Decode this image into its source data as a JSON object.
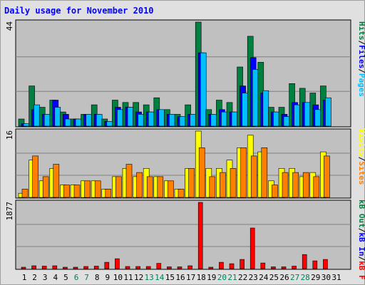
{
  "title": "Daily usage for November 2010",
  "chart_data": [
    {
      "type": "bar",
      "panel": "top",
      "ymax_label": "44",
      "ylim": [
        0,
        44
      ],
      "categories": [
        "1",
        "2",
        "3",
        "4",
        "5",
        "6",
        "7",
        "8",
        "9",
        "10",
        "11",
        "12",
        "13",
        "14",
        "15",
        "16",
        "17",
        "18",
        "19",
        "20",
        "21",
        "22",
        "23",
        "24",
        "25",
        "26",
        "27",
        "28",
        "29",
        "30",
        "31"
      ],
      "series": [
        {
          "name": "Hits",
          "color": "#008040",
          "values": [
            3,
            17,
            8,
            11,
            6,
            3,
            5,
            9,
            3,
            11,
            10,
            10,
            9,
            12,
            7,
            5,
            9,
            44,
            7,
            11,
            10,
            25,
            38,
            27,
            8,
            8,
            18,
            16,
            14,
            17,
            0
          ]
        },
        {
          "name": "Files",
          "color": "#0000ff",
          "values": [
            1,
            7,
            5,
            11,
            5,
            3,
            5,
            5,
            2,
            8,
            8,
            6,
            6,
            7,
            5,
            4,
            5,
            31,
            5,
            7,
            6,
            17,
            29,
            14,
            6,
            5,
            10,
            10,
            9,
            11,
            0
          ]
        },
        {
          "name": "Pages",
          "color": "#00c0ff",
          "values": [
            1,
            9,
            5,
            8,
            3,
            3,
            5,
            5,
            2,
            7,
            8,
            5,
            6,
            7,
            5,
            4,
            5,
            31,
            5,
            6,
            6,
            14,
            24,
            15,
            6,
            4,
            9,
            10,
            7,
            12,
            0
          ]
        }
      ]
    },
    {
      "type": "bar",
      "panel": "middle",
      "ymax_label": "16",
      "ylim": [
        0,
        16
      ],
      "categories": [
        "1",
        "2",
        "3",
        "4",
        "5",
        "6",
        "7",
        "8",
        "9",
        "10",
        "11",
        "12",
        "13",
        "14",
        "15",
        "16",
        "17",
        "18",
        "19",
        "20",
        "21",
        "22",
        "23",
        "24",
        "25",
        "26",
        "27",
        "28",
        "29",
        "30",
        "31"
      ],
      "series": [
        {
          "name": "Visits",
          "color": "#ffff00",
          "values": [
            1,
            9,
            4,
            7,
            3,
            3,
            4,
            4,
            2,
            5,
            7,
            5,
            7,
            5,
            4,
            2,
            7,
            16,
            7,
            7,
            9,
            12,
            15,
            11,
            4,
            7,
            7,
            5,
            6,
            11,
            0
          ]
        },
        {
          "name": "Sites",
          "color": "#ff8000",
          "values": [
            2,
            10,
            5,
            8,
            3,
            3,
            4,
            4,
            2,
            5,
            8,
            6,
            5,
            5,
            4,
            2,
            7,
            12,
            5,
            6,
            7,
            12,
            10,
            12,
            3,
            6,
            6,
            6,
            5,
            10,
            0
          ]
        }
      ]
    },
    {
      "type": "bar",
      "panel": "bottom",
      "ymax_label": "1877",
      "ylim": [
        0,
        1877
      ],
      "categories": [
        "1",
        "2",
        "3",
        "4",
        "5",
        "6",
        "7",
        "8",
        "9",
        "10",
        "11",
        "12",
        "13",
        "14",
        "15",
        "16",
        "17",
        "18",
        "19",
        "20",
        "21",
        "22",
        "23",
        "24",
        "25",
        "26",
        "27",
        "28",
        "29",
        "30",
        "31"
      ],
      "series": [
        {
          "name": "kB F",
          "color": "#ff0000",
          "values": [
            40,
            80,
            70,
            80,
            40,
            40,
            60,
            70,
            180,
            280,
            60,
            60,
            60,
            150,
            50,
            50,
            80,
            1877,
            40,
            180,
            140,
            260,
            1150,
            160,
            50,
            50,
            70,
            400,
            220,
            260,
            0
          ]
        },
        {
          "name": "kB In",
          "color": "#0000ff",
          "values": [
            0,
            0,
            0,
            0,
            0,
            0,
            0,
            0,
            0,
            0,
            0,
            0,
            0,
            0,
            0,
            0,
            0,
            0,
            0,
            0,
            0,
            0,
            0,
            0,
            0,
            0,
            0,
            0,
            0,
            0,
            0
          ]
        },
        {
          "name": "kB Out",
          "color": "#008040",
          "values": [
            0,
            0,
            0,
            0,
            0,
            0,
            0,
            0,
            0,
            0,
            0,
            0,
            0,
            0,
            0,
            0,
            0,
            0,
            0,
            0,
            0,
            0,
            0,
            0,
            0,
            0,
            0,
            0,
            0,
            0,
            0
          ]
        }
      ]
    }
  ],
  "weekend_days": [
    "6",
    "7",
    "13",
    "14",
    "20",
    "21",
    "27",
    "28"
  ],
  "legends": {
    "top": [
      {
        "text": "Pages",
        "color": "#00c0ff"
      },
      {
        "text": "/",
        "color": "#000000"
      },
      {
        "text": "Files",
        "color": "#0000ff"
      },
      {
        "text": "/",
        "color": "#000000"
      },
      {
        "text": "Hits",
        "color": "#008040"
      }
    ],
    "middle": [
      {
        "text": "Sites",
        "color": "#ff8000"
      },
      {
        "text": "/",
        "color": "#000000"
      },
      {
        "text": "Visits",
        "color": "#ffff00"
      }
    ],
    "bottom": [
      {
        "text": "kB F",
        "color": "#ff0000"
      },
      {
        "text": "/",
        "color": "#000000"
      },
      {
        "text": "kB In",
        "color": "#0000ff"
      },
      {
        "text": "/",
        "color": "#000000"
      },
      {
        "text": "kB Out",
        "color": "#008040"
      }
    ]
  },
  "colors": {
    "plot_bg": "#c0c0c0",
    "gridline": "#808080",
    "weekday_label": "#000000",
    "weekend_label": "#00805c"
  }
}
